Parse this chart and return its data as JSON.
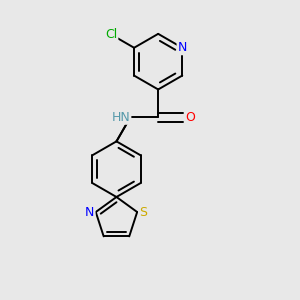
{
  "background_color": "#e8e8e8",
  "bond_color": "#000000",
  "atom_colors": {
    "N": "#0000ff",
    "O": "#ff0000",
    "S": "#ccaa00",
    "Cl": "#00aa00",
    "C": "#000000",
    "H": "#5599aa"
  },
  "font_size": 9,
  "figsize": [
    3.0,
    3.0
  ],
  "dpi": 100
}
